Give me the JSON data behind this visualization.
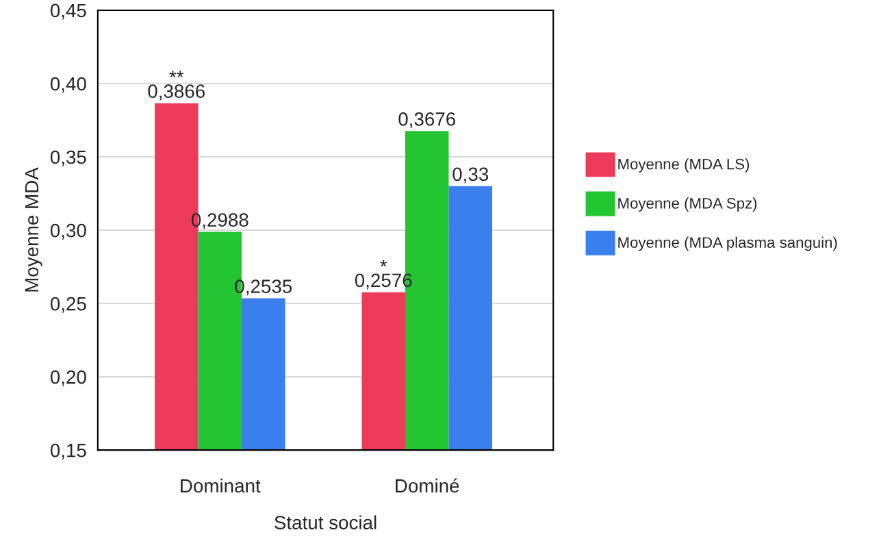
{
  "chart_data": {
    "type": "bar",
    "xlabel": "Statut social",
    "ylabel": "Moyenne MDA",
    "categories": [
      "Dominant",
      "Dominé"
    ],
    "series": [
      {
        "name": "Moyenne (MDA LS)",
        "color": "#ee3a5a",
        "values": [
          0.3866,
          0.2576
        ],
        "value_labels": [
          "0,3866",
          "0,2576"
        ]
      },
      {
        "name": "Moyenne (MDA Spz)",
        "color": "#24c532",
        "values": [
          0.2988,
          0.3676
        ],
        "value_labels": [
          "0,2988",
          "0,3676"
        ]
      },
      {
        "name": "Moyenne (MDA plasma sanguin)",
        "color": "#3b7fee",
        "values": [
          0.2535,
          0.33
        ],
        "value_labels": [
          "0,2535",
          "0,33"
        ]
      }
    ],
    "ylim": [
      0.15,
      0.45
    ],
    "yticks": [
      {
        "value": 0.15,
        "label": "0,15"
      },
      {
        "value": 0.2,
        "label": "0,20"
      },
      {
        "value": 0.25,
        "label": "0,25"
      },
      {
        "value": 0.3,
        "label": "0,30"
      },
      {
        "value": 0.35,
        "label": "0,35"
      },
      {
        "value": 0.4,
        "label": "0,40"
      },
      {
        "value": 0.45,
        "label": "0,45"
      }
    ],
    "grid": "y",
    "legend": "right",
    "annotations": [
      "**",
      "*"
    ]
  }
}
